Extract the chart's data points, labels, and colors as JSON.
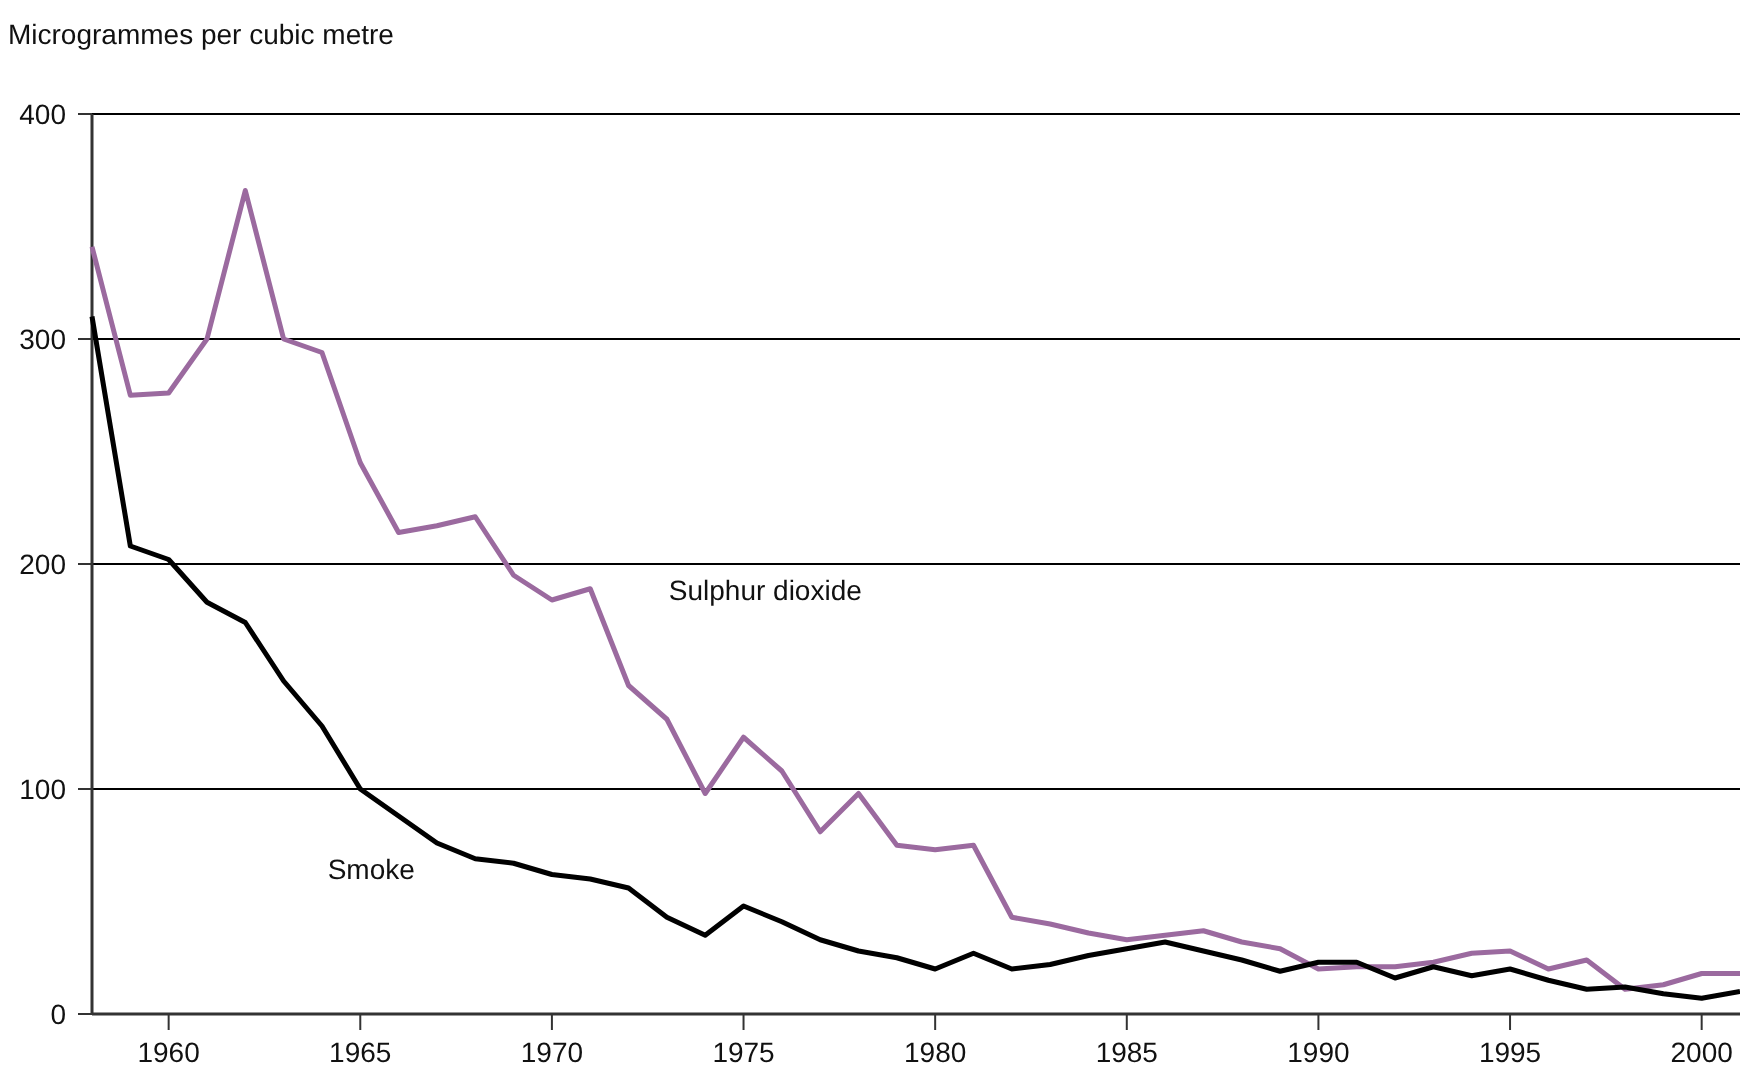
{
  "chart_data": {
    "type": "line",
    "ylabel": "Microgrammes per cubic metre",
    "x": [
      1958,
      1959,
      1960,
      1961,
      1962,
      1963,
      1964,
      1965,
      1966,
      1967,
      1968,
      1969,
      1970,
      1971,
      1972,
      1973,
      1974,
      1975,
      1976,
      1977,
      1978,
      1979,
      1980,
      1981,
      1982,
      1983,
      1984,
      1985,
      1986,
      1987,
      1988,
      1989,
      1990,
      1991,
      1992,
      1993,
      1994,
      1995,
      1996,
      1997,
      1998,
      1999,
      2000,
      2001
    ],
    "series": [
      {
        "name": "Sulphur dioxide",
        "color": "#9b6a9f",
        "values": [
          341,
          275,
          276,
          300,
          366,
          300,
          294,
          245,
          214,
          217,
          221,
          195,
          184,
          189,
          146,
          131,
          98,
          123,
          108,
          81,
          98,
          75,
          73,
          75,
          43,
          40,
          36,
          33,
          35,
          37,
          32,
          29,
          20,
          21,
          21,
          23,
          27,
          28,
          20,
          24,
          11,
          13,
          18,
          18
        ]
      },
      {
        "name": "Smoke",
        "color": "#000000",
        "values": [
          310,
          208,
          202,
          183,
          174,
          148,
          128,
          100,
          88,
          76,
          69,
          67,
          62,
          60,
          56,
          43,
          35,
          48,
          41,
          33,
          28,
          25,
          20,
          27,
          20,
          22,
          26,
          29,
          32,
          28,
          24,
          19,
          23,
          23,
          16,
          21,
          17,
          20,
          15,
          11,
          12,
          9,
          7,
          10
        ]
      }
    ],
    "xlim": [
      1958,
      2001
    ],
    "xticks": [
      1960,
      1965,
      1970,
      1975,
      1980,
      1985,
      1990,
      1995,
      2000
    ],
    "ylim": [
      0,
      400
    ],
    "yticks": [
      0,
      100,
      200,
      300,
      400
    ],
    "grid": "y",
    "marker": "none",
    "line_style": "solid"
  }
}
